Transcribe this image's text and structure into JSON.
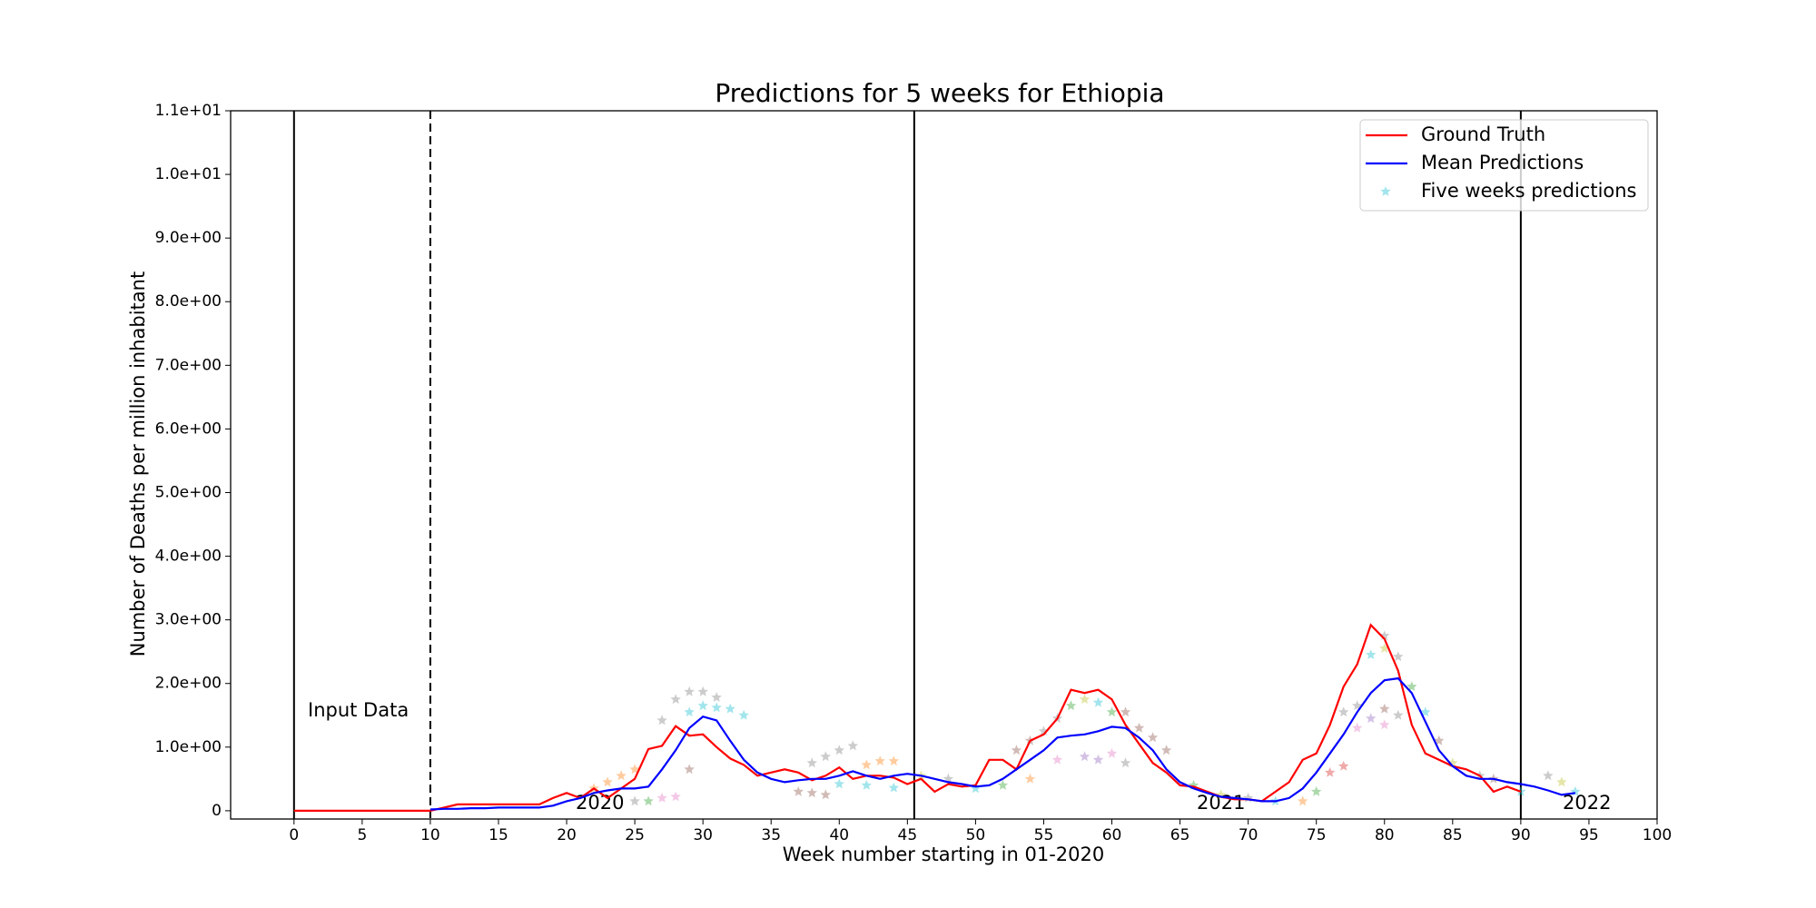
{
  "chart_data": {
    "type": "line",
    "title": "Predictions for 5 weeks for Ethiopia",
    "xlabel": "Week number starting in 01-2020",
    "ylabel": "Number of Deaths per million inhabitant",
    "xlim": [
      -4.65,
      100
    ],
    "ylim": [
      -0.13,
      11
    ],
    "xticks": [
      0,
      5,
      10,
      15,
      20,
      25,
      30,
      35,
      40,
      45,
      50,
      55,
      60,
      65,
      70,
      75,
      80,
      85,
      90,
      95,
      100
    ],
    "yticks": [
      0,
      {
        "value": 1,
        "label": "1.0e+00"
      },
      {
        "value": 2,
        "label": "2.0e+00"
      },
      {
        "value": 3,
        "label": "3.0e+00"
      },
      {
        "value": 4,
        "label": "4.0e+00"
      },
      {
        "value": 5,
        "label": "5.0e+00"
      },
      {
        "value": 6,
        "label": "6.0e+00"
      },
      {
        "value": 7,
        "label": "7.0e+00"
      },
      {
        "value": 8,
        "label": "8.0e+00"
      },
      {
        "value": 9,
        "label": "9.0e+00"
      },
      {
        "value": 10,
        "label": "1.0e+01"
      },
      {
        "value": 11,
        "label": "1.1e+01"
      }
    ],
    "grid": false,
    "legend": "upper right",
    "vlines": [
      {
        "x": 0,
        "style": "solid"
      },
      {
        "x": 10,
        "style": "dashed"
      },
      {
        "x": 45.5,
        "style": "solid"
      },
      {
        "x": 90,
        "style": "solid"
      }
    ],
    "annotations": [
      "Input Data",
      "2020",
      "2021",
      "2022"
    ],
    "series": [
      {
        "name": "Ground Truth",
        "color": "#ff0000",
        "kind": "line",
        "x": [
          0,
          1,
          2,
          3,
          4,
          5,
          6,
          7,
          8,
          9,
          10,
          11,
          12,
          13,
          14,
          15,
          16,
          17,
          18,
          19,
          20,
          21,
          22,
          23,
          24,
          25,
          26,
          27,
          28,
          29,
          30,
          31,
          32,
          33,
          34,
          35,
          36,
          37,
          38,
          39,
          40,
          41,
          42,
          43,
          44,
          45,
          46,
          47,
          48,
          49,
          50,
          51,
          52,
          53,
          54,
          55,
          56,
          57,
          58,
          59,
          60,
          61,
          62,
          63,
          64,
          65,
          66,
          67,
          68,
          69,
          70,
          71,
          72,
          73,
          74,
          75,
          76,
          77,
          78,
          79,
          80,
          81,
          82,
          83,
          84,
          85,
          86,
          87,
          88,
          89,
          90
        ],
        "values": [
          0,
          0,
          0,
          0,
          0,
          0,
          0,
          0,
          0,
          0,
          0,
          0.05,
          0.1,
          0.1,
          0.1,
          0.1,
          0.1,
          0.1,
          0.1,
          0.2,
          0.28,
          0.2,
          0.35,
          0.2,
          0.35,
          0.5,
          0.97,
          1.02,
          1.33,
          1.18,
          1.2,
          1.0,
          0.82,
          0.72,
          0.55,
          0.6,
          0.65,
          0.6,
          0.48,
          0.55,
          0.68,
          0.5,
          0.55,
          0.55,
          0.52,
          0.42,
          0.5,
          0.3,
          0.42,
          0.38,
          0.4,
          0.8,
          0.8,
          0.65,
          1.1,
          1.2,
          1.45,
          1.9,
          1.85,
          1.9,
          1.75,
          1.35,
          1.05,
          0.75,
          0.6,
          0.4,
          0.38,
          0.3,
          0.22,
          0.18,
          0.18,
          0.15,
          0.3,
          0.45,
          0.8,
          0.9,
          1.35,
          1.95,
          2.3,
          2.92,
          2.7,
          2.2,
          1.35,
          0.9,
          0.8,
          0.7,
          0.65,
          0.55,
          0.3,
          0.38,
          0.3
        ]
      },
      {
        "name": "Mean Predictions",
        "color": "#0000ff",
        "kind": "line",
        "x": [
          10,
          11,
          12,
          13,
          14,
          15,
          16,
          17,
          18,
          19,
          20,
          21,
          22,
          23,
          24,
          25,
          26,
          27,
          28,
          29,
          30,
          31,
          32,
          33,
          34,
          35,
          36,
          37,
          38,
          39,
          40,
          41,
          42,
          43,
          44,
          45,
          46,
          47,
          48,
          49,
          50,
          51,
          52,
          53,
          54,
          55,
          56,
          57,
          58,
          59,
          60,
          61,
          62,
          63,
          64,
          65,
          66,
          67,
          68,
          69,
          70,
          71,
          72,
          73,
          74,
          75,
          76,
          77,
          78,
          79,
          80,
          81,
          82,
          83,
          84,
          85,
          86,
          87,
          88,
          89,
          90,
          91,
          92,
          93,
          94
        ],
        "values": [
          0.02,
          0.03,
          0.03,
          0.04,
          0.04,
          0.05,
          0.05,
          0.05,
          0.05,
          0.08,
          0.15,
          0.2,
          0.28,
          0.32,
          0.35,
          0.35,
          0.38,
          0.65,
          0.95,
          1.3,
          1.48,
          1.42,
          1.1,
          0.8,
          0.6,
          0.5,
          0.45,
          0.48,
          0.5,
          0.5,
          0.55,
          0.62,
          0.55,
          0.5,
          0.55,
          0.58,
          0.55,
          0.5,
          0.45,
          0.42,
          0.38,
          0.4,
          0.5,
          0.65,
          0.8,
          0.95,
          1.15,
          1.18,
          1.2,
          1.25,
          1.32,
          1.3,
          1.15,
          0.95,
          0.65,
          0.45,
          0.35,
          0.28,
          0.22,
          0.2,
          0.18,
          0.15,
          0.15,
          0.2,
          0.35,
          0.6,
          0.9,
          1.2,
          1.55,
          1.85,
          2.05,
          2.08,
          1.85,
          1.4,
          0.95,
          0.7,
          0.55,
          0.5,
          0.5,
          0.45,
          0.42,
          0.38,
          0.32,
          0.25,
          0.28
        ]
      },
      {
        "name": "Five weeks predictions",
        "color": "#17becf",
        "kind": "scatter",
        "x": [
          27,
          28,
          29,
          30,
          31,
          30,
          31,
          32,
          33,
          29,
          28,
          27,
          29,
          26,
          25,
          22,
          23,
          24,
          25,
          38,
          39,
          40,
          41,
          42,
          43,
          44,
          37,
          38,
          39,
          40,
          42,
          44,
          46,
          48,
          50,
          52,
          54,
          53,
          54,
          55,
          56,
          57,
          58,
          59,
          60,
          61,
          62,
          56,
          58,
          59,
          60,
          61,
          63,
          64,
          66,
          68,
          70,
          72,
          74,
          75,
          76,
          77,
          77,
          78,
          79,
          80,
          80,
          81,
          82,
          83,
          84,
          78,
          79,
          80,
          80,
          81,
          85,
          87,
          88,
          90,
          92,
          93,
          94
        ],
        "values": [
          1.42,
          1.75,
          1.87,
          1.87,
          1.78,
          1.65,
          1.62,
          1.6,
          1.5,
          1.55,
          0.22,
          0.2,
          0.65,
          0.15,
          0.15,
          0.35,
          0.45,
          0.55,
          0.65,
          0.75,
          0.85,
          0.95,
          1.02,
          0.72,
          0.78,
          0.78,
          0.3,
          0.28,
          0.25,
          0.42,
          0.4,
          0.36,
          0.55,
          0.5,
          0.35,
          0.4,
          0.5,
          0.95,
          1.1,
          1.25,
          1.45,
          1.65,
          1.75,
          1.7,
          1.55,
          1.55,
          1.3,
          0.8,
          0.85,
          0.8,
          0.9,
          0.75,
          1.15,
          0.95,
          0.4,
          0.25,
          0.2,
          0.15,
          0.15,
          0.3,
          0.6,
          0.7,
          1.55,
          1.65,
          2.45,
          2.75,
          2.55,
          2.42,
          1.95,
          1.55,
          1.1,
          1.3,
          1.45,
          1.35,
          1.6,
          1.5,
          0.75,
          0.55,
          0.5,
          0.3,
          0.55,
          0.45,
          0.3
        ],
        "colors": [
          "#7f7f7f",
          "#7f7f7f",
          "#7f7f7f",
          "#7f7f7f",
          "#7f7f7f",
          "#17becf",
          "#17becf",
          "#17becf",
          "#17becf",
          "#17becf",
          "#e377c2",
          "#e377c2",
          "#8c564b",
          "#2ca02c",
          "#7f7f7f",
          "#ff7f0e",
          "#ff7f0e",
          "#ff7f0e",
          "#ff7f0e",
          "#7f7f7f",
          "#7f7f7f",
          "#7f7f7f",
          "#7f7f7f",
          "#ff7f0e",
          "#ff7f0e",
          "#ff7f0e",
          "#8c564b",
          "#8c564b",
          "#8c564b",
          "#17becf",
          "#17becf",
          "#17becf",
          "#bcbd22",
          "#7f7f7f",
          "#17becf",
          "#2ca02c",
          "#ff7f0e",
          "#8c564b",
          "#8c564b",
          "#7f7f7f",
          "#7f7f7f",
          "#2ca02c",
          "#bcbd22",
          "#17becf",
          "#2ca02c",
          "#8c564b",
          "#8c564b",
          "#e377c2",
          "#9467bd",
          "#9467bd",
          "#e377c2",
          "#7f7f7f",
          "#8c564b",
          "#8c564b",
          "#2ca02c",
          "#bcbd22",
          "#7f7f7f",
          "#17becf",
          "#ff7f0e",
          "#2ca02c",
          "#d62728",
          "#d62728",
          "#7f7f7f",
          "#7f7f7f",
          "#17becf",
          "#7f7f7f",
          "#bcbd22",
          "#7f7f7f",
          "#2ca02c",
          "#17becf",
          "#8c564b",
          "#e377c2",
          "#9467bd",
          "#e377c2",
          "#8c564b",
          "#7f7f7f",
          "#bcbd22",
          "#7f7f7f",
          "#8c564b",
          "#17becf",
          "#7f7f7f",
          "#bcbd22",
          "#17becf"
        ]
      }
    ]
  }
}
